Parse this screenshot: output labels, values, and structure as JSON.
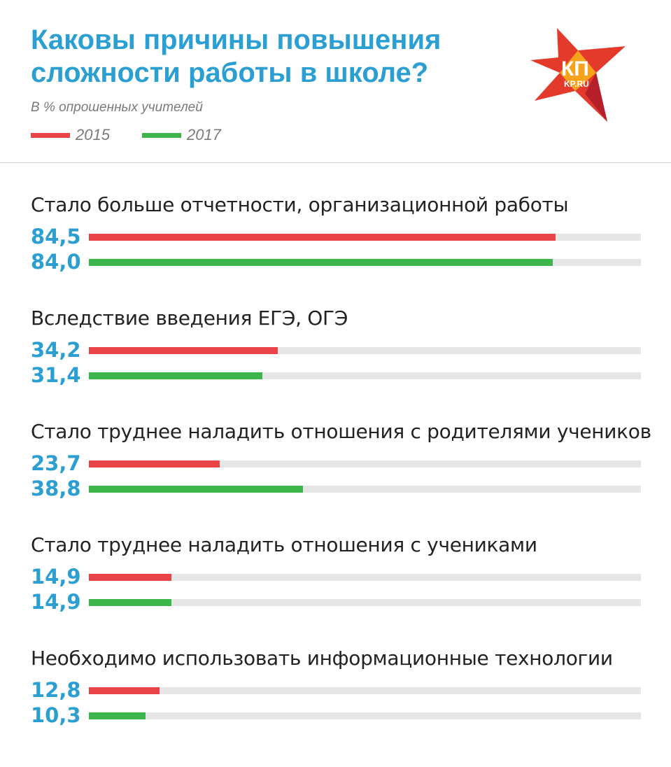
{
  "header": {
    "title": "Каковы причины повышения сложности работы в школе?",
    "subtitle": "В % опрошенных учителей",
    "logo_text": "КП",
    "logo_subtext": "KP.RU"
  },
  "colors": {
    "accent": "#2b9fd2",
    "series_2015": "#e84447",
    "series_2017": "#3cb54a",
    "track": "#e6e6e7"
  },
  "chart_data": {
    "type": "bar",
    "orientation": "horizontal",
    "title": "Каковы причины повышения сложности работы в школе?",
    "subtitle": "В % опрошенных учителей",
    "xlim": [
      0,
      100
    ],
    "legend": "top-left",
    "categories": [
      "Стало больше отчетности, организационной работы",
      "Вследствие введения ЕГЭ, ОГЭ",
      "Стало труднее наладить отношения с родителями учеников",
      "Стало труднее наладить отношения с учениками",
      "Необходимо использовать информационные технологии"
    ],
    "series": [
      {
        "name": "2015",
        "color": "#e84447",
        "values": [
          84.5,
          34.2,
          23.7,
          14.9,
          12.8
        ],
        "labels": [
          "84,5",
          "34,2",
          "23,7",
          "14,9",
          "12,8"
        ]
      },
      {
        "name": "2017",
        "color": "#3cb54a",
        "values": [
          84.0,
          31.4,
          38.8,
          14.9,
          10.3
        ],
        "labels": [
          "84,0",
          "31,4",
          "38,8",
          "14,9",
          "10,3"
        ]
      }
    ]
  }
}
